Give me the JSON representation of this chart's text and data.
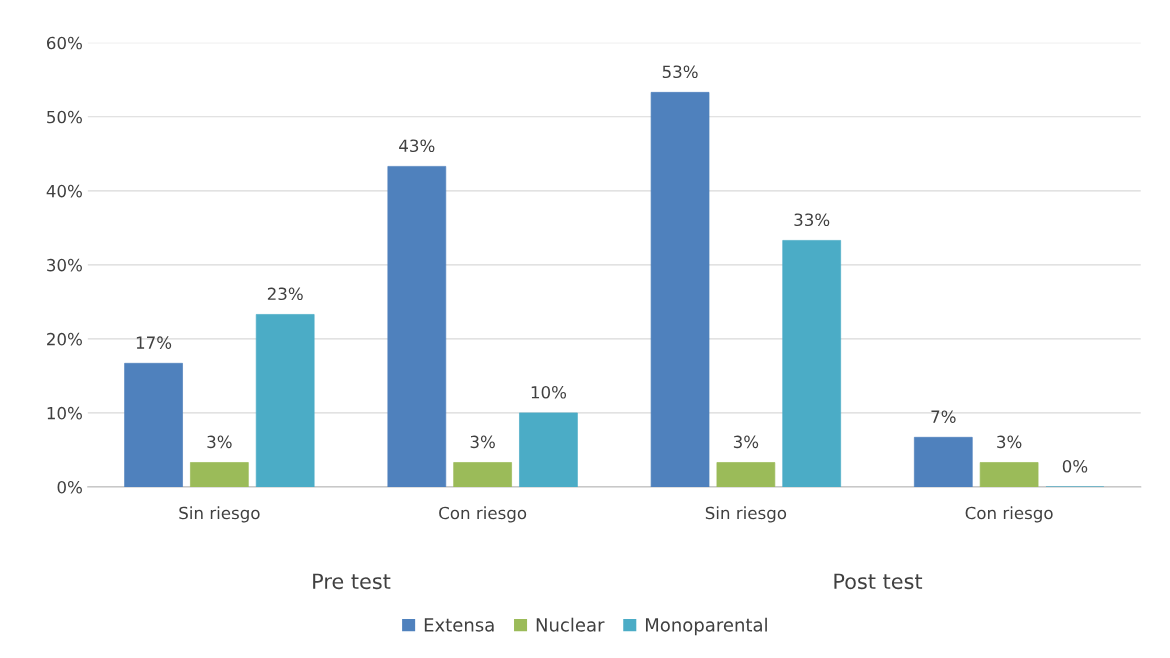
{
  "chart_data": {
    "type": "bar",
    "categories": [
      "Sin riesgo",
      "Con riesgo",
      "Sin riesgo",
      "Con riesgo"
    ],
    "series": [
      {
        "name": "Extensa",
        "color": "#4f81bd",
        "values": [
          16.7,
          43.3,
          53.3,
          6.7
        ],
        "value_labels": [
          "17%",
          "43%",
          "53%",
          "7%"
        ]
      },
      {
        "name": "Nuclear",
        "color": "#9bbb59",
        "values": [
          3.3,
          3.3,
          3.3,
          3.3
        ],
        "value_labels": [
          "3%",
          "3%",
          "3%",
          "3%"
        ]
      },
      {
        "name": "Monoparental",
        "color": "#4bacc6",
        "values": [
          23.3,
          10,
          33.3,
          0
        ],
        "value_labels": [
          "23%",
          "10%",
          "33%",
          "0%"
        ]
      }
    ],
    "annotations": [
      "Pre test",
      "Post test"
    ],
    "ylim": [
      0,
      60
    ],
    "yticks": [
      {
        "value": 0,
        "label": "0%"
      },
      {
        "value": 10,
        "label": "10%"
      },
      {
        "value": 20,
        "label": "20%"
      },
      {
        "value": 30,
        "label": "30%"
      },
      {
        "value": 40,
        "label": "40%"
      },
      {
        "value": 50,
        "label": "50%"
      },
      {
        "value": 60,
        "label": "60%"
      }
    ],
    "grid": "y",
    "legend": "bottom"
  }
}
